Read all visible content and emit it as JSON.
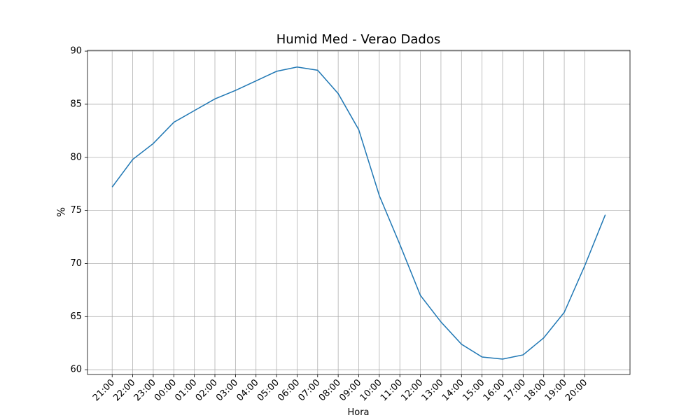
{
  "chart_data": {
    "type": "line",
    "title": "Humid Med - Verao Dados",
    "xlabel": "Hora",
    "ylabel": "%",
    "x": [
      0,
      1,
      2,
      3,
      4,
      5,
      6,
      7,
      8,
      9,
      10,
      11,
      12,
      13,
      14,
      15,
      16,
      17,
      18,
      19,
      20,
      21,
      22,
      23,
      24
    ],
    "series": [
      {
        "name": "Humid Med",
        "color": "#1f77b4",
        "values": [
          77.2,
          79.8,
          81.3,
          83.3,
          84.4,
          85.5,
          86.3,
          87.2,
          88.1,
          88.5,
          88.2,
          86.0,
          82.6,
          76.4,
          71.8,
          67.0,
          64.5,
          62.4,
          61.2,
          61.0,
          61.4,
          63.0,
          65.4,
          69.8,
          74.6
        ]
      }
    ],
    "xlim": [
      -1.2,
      25.2
    ],
    "xticks": [
      {
        "value": 0,
        "label": "21:00"
      },
      {
        "value": 1,
        "label": "22:00"
      },
      {
        "value": 2,
        "label": "23:00"
      },
      {
        "value": 3,
        "label": "00:00"
      },
      {
        "value": 4,
        "label": "01:00"
      },
      {
        "value": 5,
        "label": "02:00"
      },
      {
        "value": 6,
        "label": "03:00"
      },
      {
        "value": 7,
        "label": "04:00"
      },
      {
        "value": 8,
        "label": "05:00"
      },
      {
        "value": 9,
        "label": "06:00"
      },
      {
        "value": 10,
        "label": "07:00"
      },
      {
        "value": 11,
        "label": "08:00"
      },
      {
        "value": 12,
        "label": "09:00"
      },
      {
        "value": 13,
        "label": "10:00"
      },
      {
        "value": 14,
        "label": "11:00"
      },
      {
        "value": 15,
        "label": "12:00"
      },
      {
        "value": 16,
        "label": "13:00"
      },
      {
        "value": 17,
        "label": "14:00"
      },
      {
        "value": 18,
        "label": "15:00"
      },
      {
        "value": 19,
        "label": "16:00"
      },
      {
        "value": 20,
        "label": "17:00"
      },
      {
        "value": 21,
        "label": "18:00"
      },
      {
        "value": 22,
        "label": "19:00"
      },
      {
        "value": 23,
        "label": "20:00"
      }
    ],
    "ylim": [
      59.55,
      90.07
    ],
    "yticks": [
      60,
      65,
      70,
      75,
      80,
      85,
      90
    ],
    "grid": true
  }
}
